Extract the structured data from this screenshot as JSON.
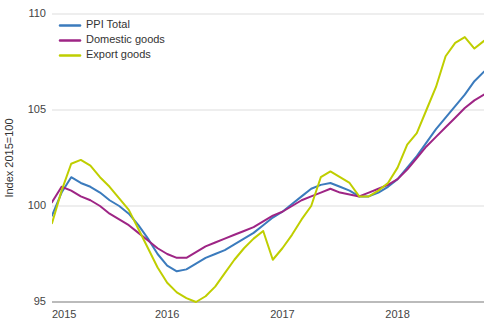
{
  "chart_data": {
    "type": "line",
    "ylabel": "Index 2015=100",
    "categories": [
      "2015",
      null,
      null,
      null,
      null,
      null,
      null,
      null,
      null,
      null,
      null,
      null,
      "2016",
      null,
      null,
      null,
      null,
      null,
      null,
      null,
      null,
      null,
      null,
      null,
      "2017",
      null,
      null,
      null,
      null,
      null,
      null,
      null,
      null,
      null,
      null,
      null,
      "2018",
      null,
      null,
      null,
      null,
      null,
      null,
      null,
      null,
      null
    ],
    "series": [
      {
        "name": "PPI Total",
        "color": "#3B7BBD",
        "values": [
          99.5,
          100.7,
          101.5,
          101.2,
          101.0,
          100.7,
          100.3,
          100.0,
          99.6,
          99.0,
          98.3,
          97.5,
          96.9,
          96.6,
          96.7,
          97.0,
          97.3,
          97.5,
          97.7,
          98.0,
          98.3,
          98.6,
          99.0,
          99.4,
          99.7,
          100.1,
          100.5,
          100.9,
          101.1,
          101.2,
          101.0,
          100.8,
          100.5,
          100.5,
          100.7,
          101.0,
          101.4,
          102.0,
          102.6,
          103.3,
          104.0,
          104.6,
          105.2,
          105.8,
          106.5,
          107.0
        ]
      },
      {
        "name": "Domestic goods",
        "color": "#9E2585",
        "values": [
          100.2,
          101.0,
          100.8,
          100.5,
          100.3,
          100.0,
          99.6,
          99.3,
          99.0,
          98.6,
          98.2,
          97.8,
          97.5,
          97.3,
          97.3,
          97.6,
          97.9,
          98.1,
          98.3,
          98.5,
          98.7,
          98.9,
          99.2,
          99.5,
          99.7,
          100.0,
          100.3,
          100.5,
          100.7,
          100.9,
          100.7,
          100.6,
          100.5,
          100.7,
          100.9,
          101.1,
          101.4,
          101.9,
          102.5,
          103.1,
          103.6,
          104.1,
          104.6,
          105.1,
          105.5,
          105.8
        ]
      },
      {
        "name": "Export goods",
        "color": "#BFCE00",
        "values": [
          99.1,
          100.8,
          102.2,
          102.4,
          102.1,
          101.5,
          101.0,
          100.4,
          99.8,
          98.8,
          97.8,
          96.8,
          96.0,
          95.5,
          95.2,
          95.0,
          95.3,
          95.8,
          96.5,
          97.2,
          97.8,
          98.3,
          98.7,
          97.2,
          97.8,
          98.5,
          99.3,
          100.0,
          101.5,
          101.8,
          101.5,
          101.2,
          100.5,
          100.5,
          100.8,
          101.2,
          102.0,
          103.2,
          103.8,
          105.0,
          106.2,
          107.8,
          108.5,
          108.8,
          108.2,
          108.6
        ]
      }
    ],
    "ylim": [
      95,
      110
    ],
    "yticks": [
      95,
      100,
      105,
      110
    ],
    "grid": true,
    "legend": "upper left"
  }
}
